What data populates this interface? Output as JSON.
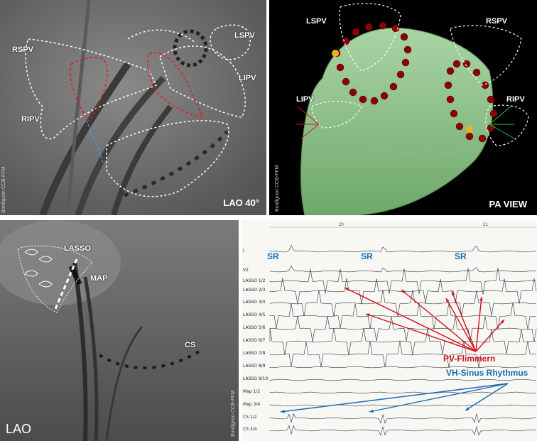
{
  "fluoro_panel": {
    "view_label": "LAO 40°",
    "credit": "Bordignon CCB-FFM",
    "vein_labels": {
      "lspv": "LSPV",
      "rspv": "RSPV",
      "lipv": "LIPV",
      "ripv": "RIPV"
    }
  },
  "map_panel": {
    "view_label": "PA VIEW",
    "credit": "Bordignon CCB-FFM",
    "vein_labels": {
      "lspv": "LSPV",
      "rspv": "RSPV",
      "lipv": "LIPV",
      "ripv": "RIPV"
    }
  },
  "lao_panel": {
    "view_label": "LAO",
    "credit": "Bordignon CCB-FFM",
    "catheter_labels": {
      "lasso": "LASSO",
      "map": "MAP",
      "cs": "CS"
    }
  },
  "ecg_panel": {
    "time_ticks": [
      "20",
      "21"
    ],
    "channels": [
      "I",
      "V2",
      "LASSO 1/2",
      "LASSO 2/3",
      "LASSO 3/4",
      "LASSO 4/5",
      "LASSO 5/6",
      "LASSO 6/7",
      "LASSO 7/8",
      "LASSO 8/9",
      "LASSO 9/10",
      "Map 1/2",
      "Map 3/4",
      "CS 1/2",
      "CS 3/4"
    ],
    "rhythm_labels": [
      "SR",
      "SR",
      "SR"
    ],
    "annotation_pv": "PV-Flimmern",
    "annotation_vh": "VH-Sinus Rhythmus",
    "colors": {
      "pv_annotation": "#d5121c",
      "vh_annotation": "#1a6bb0"
    }
  }
}
